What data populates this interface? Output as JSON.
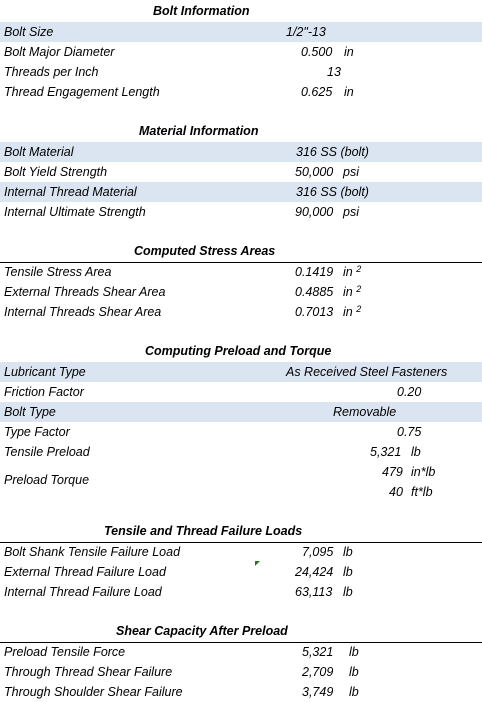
{
  "bolt_info": {
    "title": "Bolt Information",
    "bolt_size_label": "Bolt Size",
    "bolt_size_value": "1/2\"-13",
    "major_diameter_label": "Bolt Major Diameter",
    "major_diameter_value": "0.500",
    "major_diameter_unit": "in",
    "tpi_label": "Threads per Inch",
    "tpi_value": "13",
    "engagement_label": "Thread Engagement Length",
    "engagement_value": "0.625",
    "engagement_unit": "in"
  },
  "material_info": {
    "title": "Material Information",
    "bolt_material_label": "Bolt Material",
    "bolt_material_value": "316 SS (bolt)",
    "yield_label": "Bolt Yield Strength",
    "yield_value": "50,000",
    "yield_unit": "psi",
    "internal_material_label": "Internal Thread Material",
    "internal_material_value": "316 SS (bolt)",
    "internal_ultimate_label": "Internal Ultimate Strength",
    "internal_ultimate_value": "90,000",
    "internal_ultimate_unit": "psi"
  },
  "stress_areas": {
    "title": "Computed Stress Areas",
    "tensile_label": "Tensile Stress Area",
    "tensile_value": "0.1419",
    "tensile_unit": "in",
    "external_label": "External Threads Shear Area",
    "external_value": "0.4885",
    "external_unit": "in",
    "internal_label": "Internal Threads Shear Area",
    "internal_value": "0.7013",
    "internal_unit": "in",
    "area_exp": "2"
  },
  "preload": {
    "title": "Computing Preload and Torque",
    "lubricant_label": "Lubricant Type",
    "lubricant_value": "As Received Steel Fasteners",
    "friction_label": "Friction Factor",
    "friction_value": "0.20",
    "bolt_type_label": "Bolt Type",
    "bolt_type_value": "Removable",
    "type_factor_label": "Type Factor",
    "type_factor_value": "0.75",
    "tensile_preload_label": "Tensile Preload",
    "tensile_preload_value": "5,321",
    "tensile_preload_unit": "lb",
    "torque_label": "Preload Torque",
    "torque_inlb_value": "479",
    "torque_inlb_unit": "in*lb",
    "torque_ftlb_value": "40",
    "torque_ftlb_unit": "ft*lb"
  },
  "failure_loads": {
    "title": "Tensile and Thread Failure Loads",
    "shank_label": "Bolt Shank Tensile Failure Load",
    "shank_value": "7,095",
    "shank_unit": "lb",
    "external_label": "External Thread Failure Load",
    "external_value": "24,424",
    "external_unit": "lb",
    "internal_label": "Internal Thread Failure Load",
    "internal_value": "63,113",
    "internal_unit": "lb"
  },
  "shear_capacity": {
    "title": "Shear Capacity After Preload",
    "preload_force_label": "Preload Tensile Force",
    "preload_force_value": "5,321",
    "preload_force_unit": "lb",
    "thread_shear_label": "Through Thread Shear Failure",
    "thread_shear_value": "2,709",
    "thread_shear_unit": "lb",
    "shoulder_shear_label": "Through Shoulder Shear Failure",
    "shoulder_shear_value": "3,749",
    "shoulder_shear_unit": "lb"
  },
  "colors": {
    "band": "#dbe5f1",
    "marker": "#1e7b1e"
  }
}
